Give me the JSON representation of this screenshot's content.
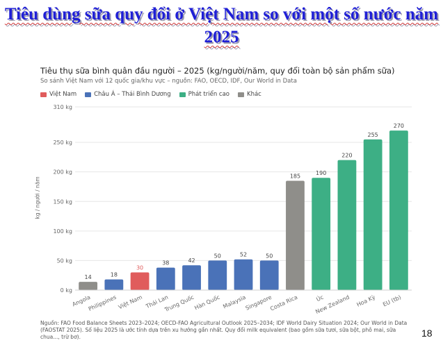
{
  "slide": {
    "title": "Tiêu dùng sữa quy đổi ở Việt Nam so với một số nước năm 2025",
    "page_number": "18"
  },
  "source_note": "Nguồn: FAO Food Balance Sheets 2023–2024; OECD-FAO Agricultural Outlook 2025–2034; IDF World Dairy Situation 2024; Our World in Data (FAOSTAT 2025). Số liệu 2025 là ước tính dựa trên xu hướng gần nhất. Quy đổi milk equivalent (bao gồm sữa tươi, sữa bột, phô mai, sữa chua..., trừ bơ).",
  "chart_data": {
    "type": "bar",
    "title": "Tiêu thụ sữa bình quân đầu người – 2025 (kg/người/năm, quy đổi toàn bộ sản phẩm sữa)",
    "subtitle": "So sánh Việt Nam với 12 quốc gia/khu vực – nguồn: FAO, OECD, IDF, Our World in Data",
    "ylabel": "kg / người / năm",
    "xlabel": "",
    "ylim": [
      0,
      310
    ],
    "yticks": [
      0,
      50,
      100,
      150,
      200,
      250,
      310
    ],
    "ytick_labels": [
      "0 kg",
      "50 kg",
      "100 kg",
      "150 kg",
      "200 kg",
      "250 kg",
      "310 kg"
    ],
    "grid": true,
    "legend_position": "top-left",
    "groups": [
      {
        "name": "Việt Nam",
        "color": "#e05c5c"
      },
      {
        "name": "Châu Á – Thái Bình Dương",
        "color": "#4a72b8"
      },
      {
        "name": "Phát triển cao",
        "color": "#3daf85"
      },
      {
        "name": "Khác",
        "color": "#8f8e8a"
      }
    ],
    "categories": [
      "Angola",
      "Philippines",
      "Việt Nam",
      "Thái Lan",
      "Trung Quốc",
      "Hàn Quốc",
      "Malaysia",
      "Singapore",
      "Costa Rica",
      "Úc",
      "New Zealand",
      "Hoa Kỳ",
      "EU (tb)"
    ],
    "values": [
      14,
      18,
      30,
      38,
      42,
      50,
      52,
      50,
      185,
      190,
      220,
      255,
      270
    ],
    "value_labels": [
      "14",
      "18",
      "30",
      "38",
      "42",
      "50",
      "52",
      "50",
      "185",
      "190",
      "220",
      "255",
      "270"
    ],
    "bar_groups": [
      3,
      1,
      0,
      1,
      1,
      1,
      1,
      1,
      3,
      2,
      2,
      2,
      2
    ],
    "highlight_label_color": "#e05c5c"
  }
}
